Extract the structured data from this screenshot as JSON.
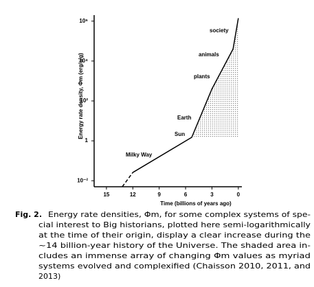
{
  "chart_data": {
    "type": "line",
    "log_y": true,
    "ylabel": "Energy rate density, Φm (erg/s/g)",
    "xlabel": "Time (billions of years ago)",
    "xlim": [
      16.4,
      -0.4
    ],
    "xticks": [
      15,
      12,
      9,
      6,
      3,
      0
    ],
    "ylim": [
      0.005,
      2000000
    ],
    "yticks": [
      {
        "value": 0.01,
        "label": "10⁻²"
      },
      1,
      {
        "value": 100,
        "label": "10²"
      },
      {
        "value": 10000,
        "label": "10⁴"
      },
      {
        "value": 1000000,
        "label": "10⁶"
      }
    ],
    "series": [
      {
        "color": "#000000",
        "dashed": true,
        "x": [
          13.2,
          12
        ],
        "values": [
          0.005,
          0.026
        ]
      },
      {
        "color": "#000000",
        "dashed": false,
        "x": [
          12,
          5.3,
          3,
          0.6,
          0
        ],
        "values": [
          0.026,
          1.5,
          400,
          40000,
          1400000
        ]
      }
    ],
    "shaded_area": {
      "color": "#b8b8b8",
      "x": [
        5.3,
        3,
        0.6,
        0,
        0
      ],
      "values": [
        1.5,
        400,
        40000,
        1400000,
        1.5
      ]
    },
    "annotations": [
      "society",
      "animals",
      "plants",
      "Earth",
      "Sun",
      "Milky Way"
    ]
  },
  "caption": {
    "label": "Fig. 2.",
    "lines": [
      "Energy rate densities, Φm, for some complex systems of spe-",
      "cial interest to Big historians, plotted here semi-logarithmically",
      "at the time of their origin, display a clear increase during the",
      "~14 billion-year history of the Universe. The shaded area in-",
      "cludes an immense array of changing Φm values as myriad",
      "systems evolved and complexified (Chaisson 2010, 2011, and",
      "2013)"
    ]
  }
}
